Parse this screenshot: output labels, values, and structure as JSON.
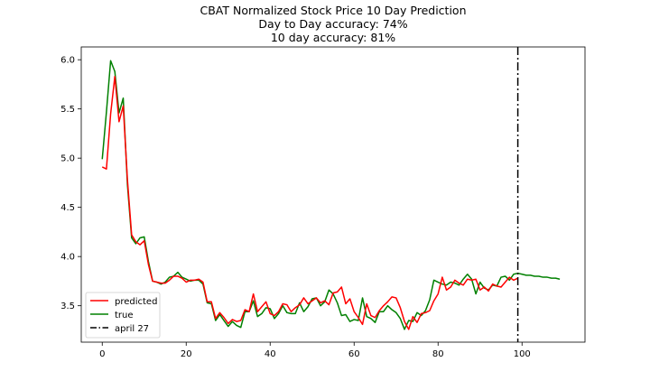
{
  "chart_data": {
    "type": "line",
    "title_lines": [
      "CBAT Normalized Stock Price 10 Day Prediction",
      "Day to Day accuracy: 74%",
      "10 day accuracy: 81%"
    ],
    "xlabel": "",
    "ylabel": "",
    "xlim": [
      -5,
      115
    ],
    "ylim": [
      3.13,
      6.13
    ],
    "x_ticks": [
      0,
      20,
      40,
      60,
      80,
      100
    ],
    "y_ticks": [
      3.5,
      4.0,
      4.5,
      5.0,
      5.5,
      6.0
    ],
    "x_tick_labels": [
      "0",
      "20",
      "40",
      "60",
      "80",
      "100"
    ],
    "y_tick_labels": [
      "3.5",
      "4.0",
      "4.5",
      "5.0",
      "5.5",
      "6.0"
    ],
    "grid": false,
    "legend_position": "lower-left",
    "series": [
      {
        "name": "predicted",
        "color": "#ff0000",
        "style": "solid",
        "x": [
          0,
          1,
          2,
          3,
          4,
          5,
          6,
          7,
          8,
          9,
          10,
          11,
          12,
          13,
          14,
          15,
          16,
          17,
          18,
          19,
          20,
          21,
          22,
          23,
          24,
          25,
          26,
          27,
          28,
          29,
          30,
          31,
          32,
          33,
          34,
          35,
          36,
          37,
          38,
          39,
          40,
          41,
          42,
          43,
          44,
          45,
          46,
          47,
          48,
          49,
          50,
          51,
          52,
          53,
          54,
          55,
          56,
          57,
          58,
          59,
          60,
          61,
          62,
          63,
          64,
          65,
          66,
          67,
          68,
          69,
          70,
          71,
          72,
          73,
          74,
          75,
          76,
          77,
          78,
          79,
          80,
          81,
          82,
          83,
          84,
          85,
          86,
          87,
          88,
          89,
          90,
          91,
          92,
          93,
          94,
          95,
          96,
          97,
          98,
          99
        ],
        "y": [
          4.91,
          4.89,
          5.45,
          5.83,
          5.37,
          5.53,
          4.78,
          4.22,
          4.15,
          4.12,
          4.16,
          3.92,
          3.75,
          3.74,
          3.73,
          3.73,
          3.76,
          3.8,
          3.8,
          3.78,
          3.74,
          3.76,
          3.76,
          3.77,
          3.74,
          3.54,
          3.54,
          3.37,
          3.43,
          3.38,
          3.32,
          3.36,
          3.34,
          3.35,
          3.46,
          3.44,
          3.62,
          3.44,
          3.49,
          3.54,
          3.42,
          3.4,
          3.44,
          3.52,
          3.51,
          3.44,
          3.48,
          3.51,
          3.58,
          3.52,
          3.55,
          3.58,
          3.53,
          3.55,
          3.51,
          3.63,
          3.64,
          3.69,
          3.52,
          3.57,
          3.44,
          3.38,
          3.31,
          3.52,
          3.4,
          3.38,
          3.45,
          3.5,
          3.54,
          3.59,
          3.58,
          3.48,
          3.34,
          3.26,
          3.39,
          3.33,
          3.42,
          3.43,
          3.45,
          3.55,
          3.62,
          3.79,
          3.66,
          3.69,
          3.76,
          3.73,
          3.71,
          3.77,
          3.76,
          3.77,
          3.66,
          3.69,
          3.65,
          3.72,
          3.7,
          3.69,
          3.74,
          3.79,
          3.76,
          3.78
        ]
      },
      {
        "name": "true",
        "color": "#008000",
        "style": "solid",
        "x": [
          0,
          1,
          2,
          3,
          4,
          5,
          6,
          7,
          8,
          9,
          10,
          11,
          12,
          13,
          14,
          15,
          16,
          17,
          18,
          19,
          20,
          21,
          22,
          23,
          24,
          25,
          26,
          27,
          28,
          29,
          30,
          31,
          32,
          33,
          34,
          35,
          36,
          37,
          38,
          39,
          40,
          41,
          42,
          43,
          44,
          45,
          46,
          47,
          48,
          49,
          50,
          51,
          52,
          53,
          54,
          55,
          56,
          57,
          58,
          59,
          60,
          61,
          62,
          63,
          64,
          65,
          66,
          67,
          68,
          69,
          70,
          71,
          72,
          73,
          74,
          75,
          76,
          77,
          78,
          79,
          80,
          81,
          82,
          83,
          84,
          85,
          86,
          87,
          88,
          89,
          90,
          91,
          92,
          93,
          94,
          95,
          96,
          97,
          98,
          99,
          100,
          101,
          102,
          103,
          104,
          105,
          106,
          107,
          108,
          109
        ],
        "y": [
          4.99,
          5.47,
          5.99,
          5.88,
          5.46,
          5.61,
          4.73,
          4.19,
          4.13,
          4.19,
          4.2,
          3.95,
          3.75,
          3.74,
          3.72,
          3.74,
          3.79,
          3.8,
          3.84,
          3.79,
          3.77,
          3.75,
          3.76,
          3.76,
          3.72,
          3.53,
          3.52,
          3.35,
          3.41,
          3.35,
          3.29,
          3.34,
          3.3,
          3.28,
          3.44,
          3.44,
          3.55,
          3.39,
          3.42,
          3.48,
          3.47,
          3.37,
          3.42,
          3.5,
          3.43,
          3.42,
          3.42,
          3.53,
          3.44,
          3.49,
          3.57,
          3.58,
          3.5,
          3.54,
          3.66,
          3.62,
          3.53,
          3.4,
          3.41,
          3.34,
          3.36,
          3.35,
          3.58,
          3.39,
          3.37,
          3.33,
          3.44,
          3.44,
          3.5,
          3.46,
          3.43,
          3.37,
          3.26,
          3.35,
          3.34,
          3.43,
          3.4,
          3.45,
          3.56,
          3.76,
          3.74,
          3.72,
          3.71,
          3.74,
          3.73,
          3.71,
          3.77,
          3.82,
          3.77,
          3.62,
          3.74,
          3.68,
          3.66,
          3.71,
          3.7,
          3.79,
          3.8,
          3.76,
          3.82,
          3.83,
          3.82,
          3.81,
          3.81,
          3.8,
          3.8,
          3.79,
          3.79,
          3.78,
          3.78,
          3.77
        ]
      },
      {
        "name": "april 27",
        "color": "#000000",
        "style": "dashdot",
        "vline_x": 99
      }
    ]
  }
}
